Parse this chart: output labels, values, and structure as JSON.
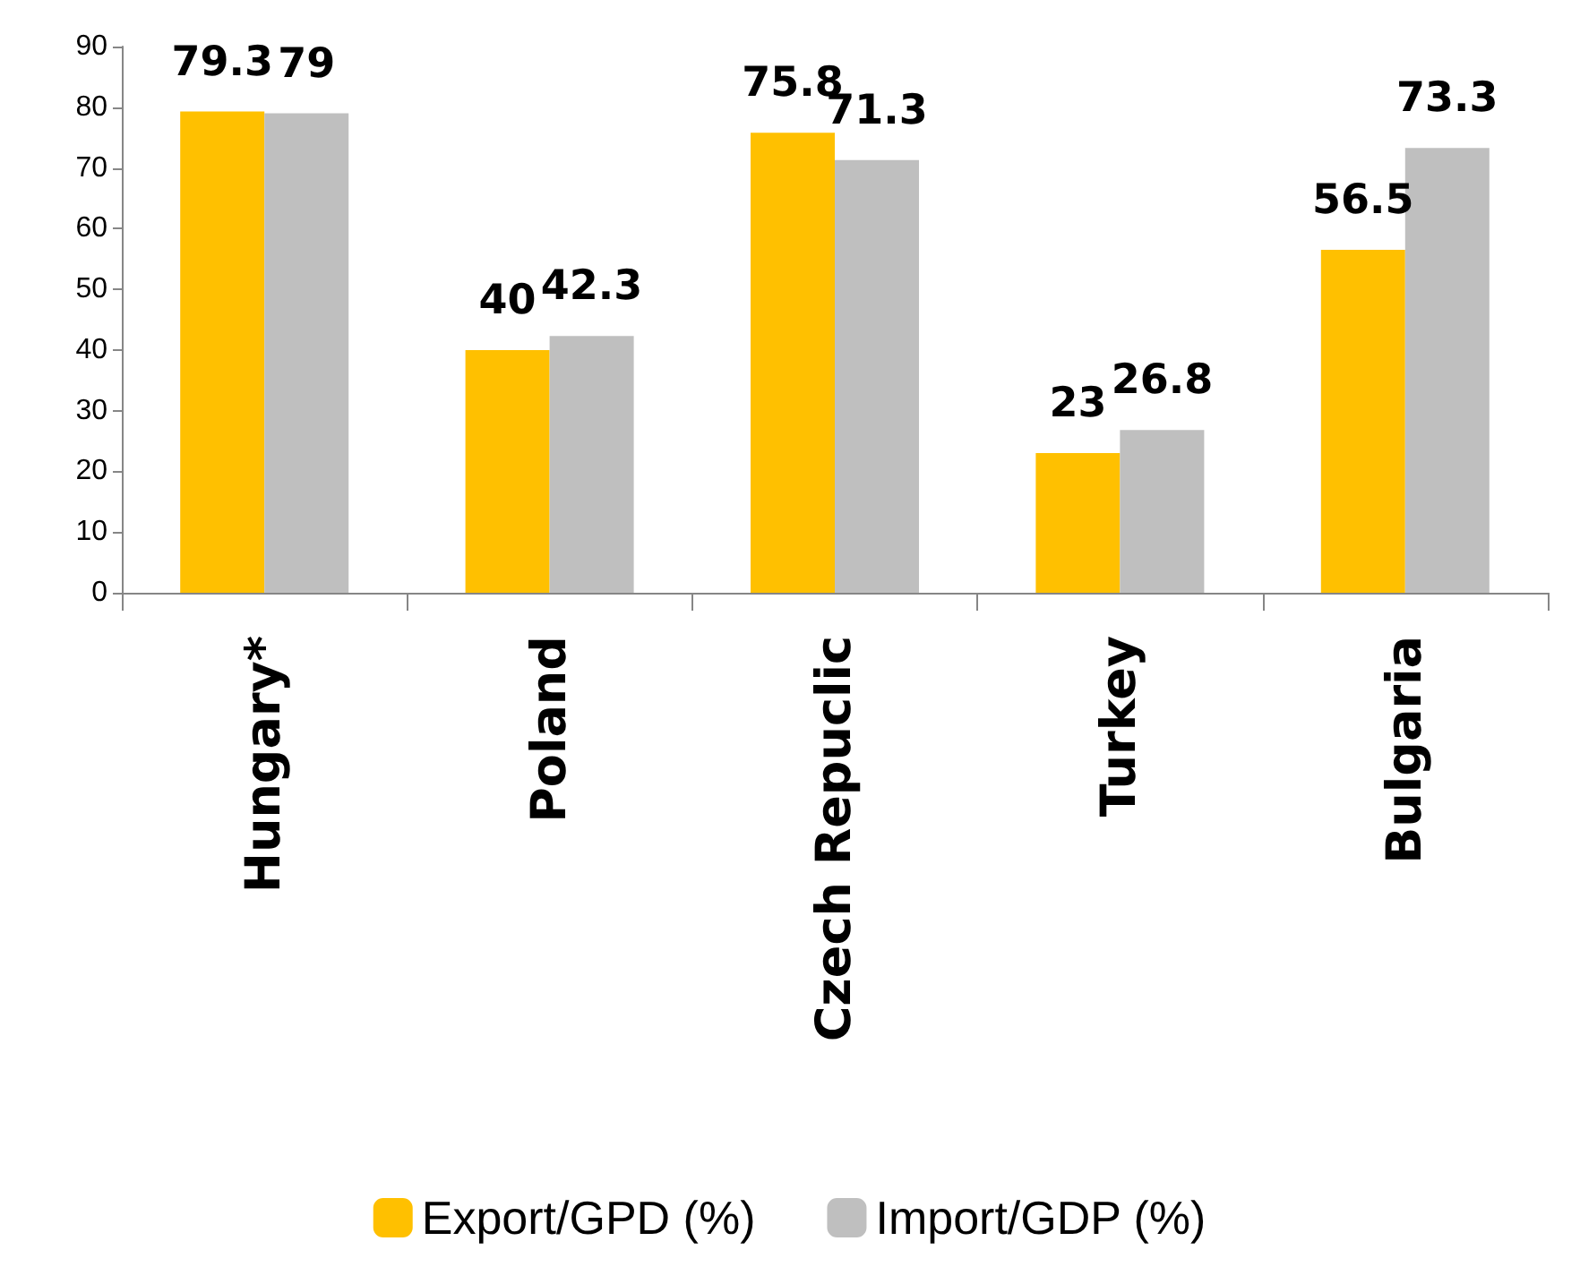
{
  "chart_data": {
    "type": "bar",
    "categories": [
      "Hungary*",
      "Poland",
      "Czech Repuclic",
      "Turkey",
      "Bulgaria"
    ],
    "series": [
      {
        "name": "Export/GPD (%)",
        "color": "#ffc000",
        "values": [
          79.3,
          40,
          75.8,
          23,
          56.5
        ]
      },
      {
        "name": "Import/GDP (%)",
        "color": "#bfbfbf",
        "values": [
          79,
          42.3,
          71.3,
          26.8,
          73.3
        ]
      }
    ],
    "ylim": [
      0,
      90
    ],
    "yticks": [
      0,
      10,
      20,
      30,
      40,
      50,
      60,
      70,
      80,
      90
    ],
    "grid": false,
    "legend": "bottom",
    "data_labels": true
  }
}
